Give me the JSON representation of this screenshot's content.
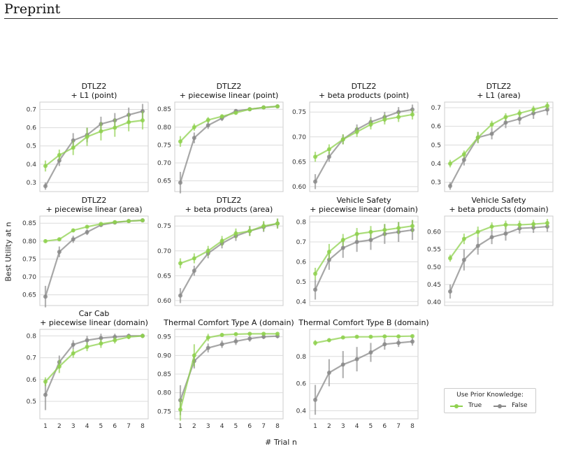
{
  "header": {
    "title": "Preprint"
  },
  "figure": {
    "ylabel": "Best Utility at n",
    "xlabel": "# Trial n",
    "legend": {
      "title": "Use Prior Knowledge:",
      "items": [
        "True",
        "False"
      ]
    },
    "colors": {
      "true": "#8fd14f",
      "false": "#8a8a8a"
    }
  },
  "chart_data": [
    {
      "type": "line",
      "title": [
        "DTLZ2",
        "+ L1 (point)"
      ],
      "x": [
        1,
        2,
        3,
        4,
        5,
        6,
        7,
        8
      ],
      "ylim": [
        0.25,
        0.74
      ],
      "yticks": [
        "0.3",
        "0.4",
        "0.5",
        "0.6",
        "0.7"
      ],
      "ytick_values": [
        0.3,
        0.4,
        0.5,
        0.6,
        0.7
      ],
      "series": [
        {
          "name": "True",
          "values": [
            0.39,
            0.45,
            0.49,
            0.55,
            0.58,
            0.6,
            0.63,
            0.64
          ],
          "err": [
            0.03,
            0.03,
            0.04,
            0.05,
            0.05,
            0.05,
            0.05,
            0.05
          ]
        },
        {
          "name": "False",
          "values": [
            0.28,
            0.42,
            0.53,
            0.56,
            0.62,
            0.64,
            0.67,
            0.69
          ],
          "err": [
            0.02,
            0.03,
            0.04,
            0.04,
            0.04,
            0.04,
            0.04,
            0.04
          ]
        }
      ]
    },
    {
      "type": "line",
      "title": [
        "DTLZ2",
        "+ piecewise linear (point)"
      ],
      "x": [
        1,
        2,
        3,
        4,
        5,
        6,
        7,
        8
      ],
      "ylim": [
        0.62,
        0.87
      ],
      "yticks": [
        "0.65",
        "0.70",
        "0.75",
        "0.80",
        "0.85"
      ],
      "ytick_values": [
        0.65,
        0.7,
        0.75,
        0.8,
        0.85
      ],
      "series": [
        {
          "name": "True",
          "values": [
            0.76,
            0.8,
            0.82,
            0.83,
            0.84,
            0.85,
            0.855,
            0.858
          ],
          "err": [
            0.015,
            0.01,
            0.008,
            0.006,
            0.005,
            0.004,
            0.003,
            0.003
          ]
        },
        {
          "name": "False",
          "values": [
            0.645,
            0.77,
            0.805,
            0.825,
            0.845,
            0.85,
            0.855,
            0.858
          ],
          "err": [
            0.03,
            0.015,
            0.01,
            0.008,
            0.005,
            0.004,
            0.003,
            0.003
          ]
        }
      ]
    },
    {
      "type": "line",
      "title": [
        "DTLZ2",
        "+ beta products (point)"
      ],
      "x": [
        1,
        2,
        3,
        4,
        5,
        6,
        7,
        8
      ],
      "ylim": [
        0.59,
        0.77
      ],
      "yticks": [
        "0.60",
        "0.65",
        "0.70",
        "0.75"
      ],
      "ytick_values": [
        0.6,
        0.65,
        0.7,
        0.75
      ],
      "series": [
        {
          "name": "True",
          "values": [
            0.66,
            0.675,
            0.695,
            0.71,
            0.725,
            0.735,
            0.74,
            0.745
          ],
          "err": [
            0.01,
            0.01,
            0.01,
            0.01,
            0.01,
            0.01,
            0.01,
            0.01
          ]
        },
        {
          "name": "False",
          "values": [
            0.61,
            0.66,
            0.695,
            0.715,
            0.73,
            0.74,
            0.75,
            0.755
          ],
          "err": [
            0.015,
            0.01,
            0.01,
            0.01,
            0.01,
            0.01,
            0.01,
            0.01
          ]
        }
      ]
    },
    {
      "type": "line",
      "title": [
        "DTLZ2",
        "+ L1 (area)"
      ],
      "x": [
        1,
        2,
        3,
        4,
        5,
        6,
        7,
        8
      ],
      "ylim": [
        0.25,
        0.73
      ],
      "yticks": [
        "0.3",
        "0.4",
        "0.5",
        "0.6",
        "0.7"
      ],
      "ytick_values": [
        0.3,
        0.4,
        0.5,
        0.6,
        0.7
      ],
      "series": [
        {
          "name": "True",
          "values": [
            0.4,
            0.45,
            0.54,
            0.61,
            0.65,
            0.67,
            0.69,
            0.71
          ],
          "err": [
            0.02,
            0.02,
            0.03,
            0.02,
            0.02,
            0.02,
            0.02,
            0.02
          ]
        },
        {
          "name": "False",
          "values": [
            0.28,
            0.42,
            0.54,
            0.56,
            0.62,
            0.64,
            0.67,
            0.69
          ],
          "err": [
            0.02,
            0.03,
            0.03,
            0.03,
            0.03,
            0.03,
            0.03,
            0.03
          ]
        }
      ]
    },
    {
      "type": "line",
      "title": [
        "DTLZ2",
        "+ piecewise linear (area)"
      ],
      "x": [
        1,
        2,
        3,
        4,
        5,
        6,
        7,
        8
      ],
      "ylim": [
        0.62,
        0.87
      ],
      "yticks": [
        "0.65",
        "0.70",
        "0.75",
        "0.80",
        "0.85"
      ],
      "ytick_values": [
        0.65,
        0.7,
        0.75,
        0.8,
        0.85
      ],
      "series": [
        {
          "name": "True",
          "values": [
            0.8,
            0.805,
            0.83,
            0.84,
            0.848,
            0.853,
            0.856,
            0.858
          ],
          "err": [
            0.005,
            0.005,
            0.005,
            0.004,
            0.003,
            0.003,
            0.003,
            0.003
          ]
        },
        {
          "name": "False",
          "values": [
            0.645,
            0.77,
            0.805,
            0.825,
            0.845,
            0.852,
            0.856,
            0.858
          ],
          "err": [
            0.03,
            0.015,
            0.01,
            0.008,
            0.005,
            0.004,
            0.003,
            0.003
          ]
        }
      ]
    },
    {
      "type": "line",
      "title": [
        "DTLZ2",
        "+ beta products (area)"
      ],
      "x": [
        1,
        2,
        3,
        4,
        5,
        6,
        7,
        8
      ],
      "ylim": [
        0.59,
        0.77
      ],
      "yticks": [
        "0.60",
        "0.65",
        "0.70",
        "0.75"
      ],
      "ytick_values": [
        0.6,
        0.65,
        0.7,
        0.75
      ],
      "series": [
        {
          "name": "True",
          "values": [
            0.675,
            0.685,
            0.7,
            0.72,
            0.735,
            0.74,
            0.75,
            0.755
          ],
          "err": [
            0.01,
            0.01,
            0.01,
            0.01,
            0.01,
            0.01,
            0.01,
            0.01
          ]
        },
        {
          "name": "False",
          "values": [
            0.61,
            0.66,
            0.695,
            0.715,
            0.73,
            0.74,
            0.748,
            0.755
          ],
          "err": [
            0.015,
            0.01,
            0.01,
            0.01,
            0.01,
            0.01,
            0.01,
            0.01
          ]
        }
      ]
    },
    {
      "type": "line",
      "title": [
        "Vehicle Safety",
        "+ piecewise linear (domain)"
      ],
      "x": [
        1,
        2,
        3,
        4,
        5,
        6,
        7,
        8
      ],
      "ylim": [
        0.38,
        0.83
      ],
      "yticks": [
        "0.4",
        "0.5",
        "0.6",
        "0.7",
        "0.8"
      ],
      "ytick_values": [
        0.4,
        0.5,
        0.6,
        0.7,
        0.8
      ],
      "series": [
        {
          "name": "True",
          "values": [
            0.54,
            0.65,
            0.71,
            0.74,
            0.75,
            0.76,
            0.77,
            0.78
          ],
          "err": [
            0.03,
            0.04,
            0.03,
            0.03,
            0.03,
            0.03,
            0.03,
            0.03
          ]
        },
        {
          "name": "False",
          "values": [
            0.46,
            0.61,
            0.67,
            0.7,
            0.71,
            0.74,
            0.75,
            0.76
          ],
          "err": [
            0.05,
            0.05,
            0.05,
            0.05,
            0.05,
            0.05,
            0.05,
            0.05
          ]
        }
      ]
    },
    {
      "type": "line",
      "title": [
        "Vehicle Safety",
        "+ beta products (domain)"
      ],
      "x": [
        1,
        2,
        3,
        4,
        5,
        6,
        7,
        8
      ],
      "ylim": [
        0.39,
        0.645
      ],
      "yticks": [
        "0.40",
        "0.45",
        "0.50",
        "0.55",
        "0.60"
      ],
      "ytick_values": [
        0.4,
        0.45,
        0.5,
        0.55,
        0.6
      ],
      "series": [
        {
          "name": "True",
          "values": [
            0.525,
            0.58,
            0.6,
            0.615,
            0.62,
            0.62,
            0.622,
            0.625
          ],
          "err": [
            0.01,
            0.015,
            0.015,
            0.012,
            0.012,
            0.012,
            0.012,
            0.012
          ]
        },
        {
          "name": "False",
          "values": [
            0.43,
            0.52,
            0.56,
            0.585,
            0.595,
            0.61,
            0.612,
            0.615
          ],
          "err": [
            0.02,
            0.03,
            0.025,
            0.02,
            0.02,
            0.015,
            0.015,
            0.015
          ]
        }
      ]
    },
    {
      "type": "line",
      "title": [
        "Car Cab",
        "+ piecewise linear (domain)"
      ],
      "x": [
        1,
        2,
        3,
        4,
        5,
        6,
        7,
        8
      ],
      "ylim": [
        0.42,
        0.83
      ],
      "yticks": [
        "0.5",
        "0.6",
        "0.7",
        "0.8"
      ],
      "ytick_values": [
        0.5,
        0.6,
        0.7,
        0.8
      ],
      "series": [
        {
          "name": "True",
          "values": [
            0.59,
            0.66,
            0.72,
            0.75,
            0.765,
            0.78,
            0.795,
            0.8
          ],
          "err": [
            0.02,
            0.03,
            0.02,
            0.02,
            0.02,
            0.015,
            0.01,
            0.01
          ]
        },
        {
          "name": "False",
          "values": [
            0.53,
            0.68,
            0.76,
            0.78,
            0.79,
            0.795,
            0.8,
            0.8
          ],
          "err": [
            0.07,
            0.03,
            0.02,
            0.02,
            0.02,
            0.015,
            0.01,
            0.01
          ]
        }
      ]
    },
    {
      "type": "line",
      "title": [
        "Thermal Comfort Type A (domain)"
      ],
      "x": [
        1,
        2,
        3,
        4,
        5,
        6,
        7,
        8
      ],
      "ylim": [
        0.73,
        0.97
      ],
      "yticks": [
        "0.75",
        "0.80",
        "0.85",
        "0.90",
        "0.95"
      ],
      "ytick_values": [
        0.75,
        0.8,
        0.85,
        0.9,
        0.95
      ],
      "series": [
        {
          "name": "True",
          "values": [
            0.755,
            0.9,
            0.948,
            0.955,
            0.957,
            0.958,
            0.958,
            0.958
          ],
          "err": [
            0.03,
            0.03,
            0.01,
            0.005,
            0.004,
            0.003,
            0.003,
            0.003
          ]
        },
        {
          "name": "False",
          "values": [
            0.78,
            0.885,
            0.92,
            0.93,
            0.938,
            0.945,
            0.95,
            0.952
          ],
          "err": [
            0.04,
            0.02,
            0.012,
            0.01,
            0.01,
            0.008,
            0.006,
            0.006
          ]
        }
      ]
    },
    {
      "type": "line",
      "title": [
        "Thermal Comfort Type B (domain)"
      ],
      "x": [
        1,
        2,
        3,
        4,
        5,
        6,
        7,
        8
      ],
      "ylim": [
        0.34,
        1.0
      ],
      "yticks": [
        "0.4",
        "0.6",
        "0.8"
      ],
      "ytick_values": [
        0.4,
        0.6,
        0.8
      ],
      "series": [
        {
          "name": "True",
          "values": [
            0.9,
            0.92,
            0.94,
            0.945,
            0.945,
            0.948,
            0.948,
            0.95
          ],
          "err": [
            0.02,
            0.015,
            0.01,
            0.01,
            0.01,
            0.01,
            0.01,
            0.01
          ]
        },
        {
          "name": "False",
          "values": [
            0.48,
            0.68,
            0.74,
            0.78,
            0.83,
            0.89,
            0.9,
            0.91
          ],
          "err": [
            0.11,
            0.1,
            0.1,
            0.09,
            0.07,
            0.04,
            0.03,
            0.03
          ]
        }
      ]
    }
  ]
}
